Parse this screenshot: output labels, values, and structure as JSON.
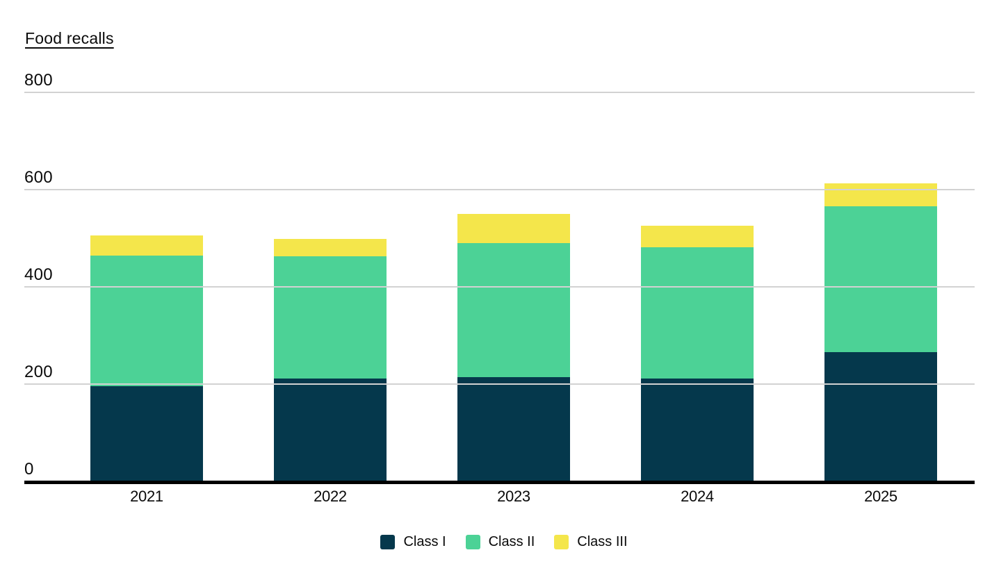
{
  "title": "Food recalls",
  "chart_data": {
    "type": "bar",
    "stacked": true,
    "title": "Food recalls",
    "xlabel": "",
    "ylabel": "",
    "categories": [
      "2021",
      "2022",
      "2023",
      "2024",
      "2025"
    ],
    "series": [
      {
        "name": "Class I",
        "color": "#05384c",
        "values": [
          195,
          210,
          213,
          210,
          265
        ]
      },
      {
        "name": "Class II",
        "color": "#4cd296",
        "values": [
          268,
          251,
          275,
          270,
          299
        ]
      },
      {
        "name": "Class III",
        "color": "#f4e64b",
        "values": [
          42,
          36,
          60,
          44,
          48
        ]
      }
    ],
    "totals": [
      505,
      497,
      548,
      524,
      612
    ],
    "ylim": [
      0,
      800
    ],
    "yticks": [
      0,
      200,
      400,
      600,
      800
    ],
    "grid": true,
    "legend_position": "bottom"
  },
  "colors": {
    "gridline": "#d2d2d2",
    "axis_line": "#000000",
    "text": "#0a0a0a",
    "background": "#ffffff"
  }
}
